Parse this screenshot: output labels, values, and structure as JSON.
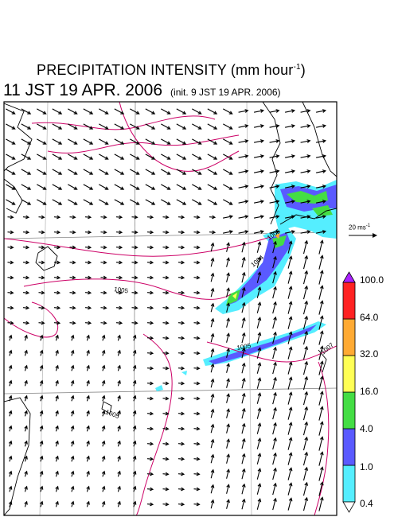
{
  "title": {
    "main": "PRECIPITATION INTENSITY (mm hour",
    "main_exp": "-1",
    "main_close": ")",
    "time": "11 JST 19 APR. 2006",
    "init": "(init. 9 JST 19 APR. 2006)"
  },
  "wind_reference": {
    "label": "20 ms",
    "exp": "-1"
  },
  "colorbar": {
    "levels": [
      "0.4",
      "1.0",
      "4.0",
      "16.0",
      "32.0",
      "64.0",
      "100.0"
    ],
    "colors": [
      "#55eeff",
      "#5a5aff",
      "#44dd44",
      "#ffff55",
      "#ffaa33",
      "#ff2222",
      "#aa22ff"
    ]
  },
  "isobar_labels": [
    "1005",
    "1005",
    "1005",
    "1007",
    "1004",
    "1005",
    "1005"
  ],
  "colors": {
    "isobar": "#cc0066",
    "coast": "#000000",
    "grid": "#888888",
    "frame": "#000000"
  }
}
